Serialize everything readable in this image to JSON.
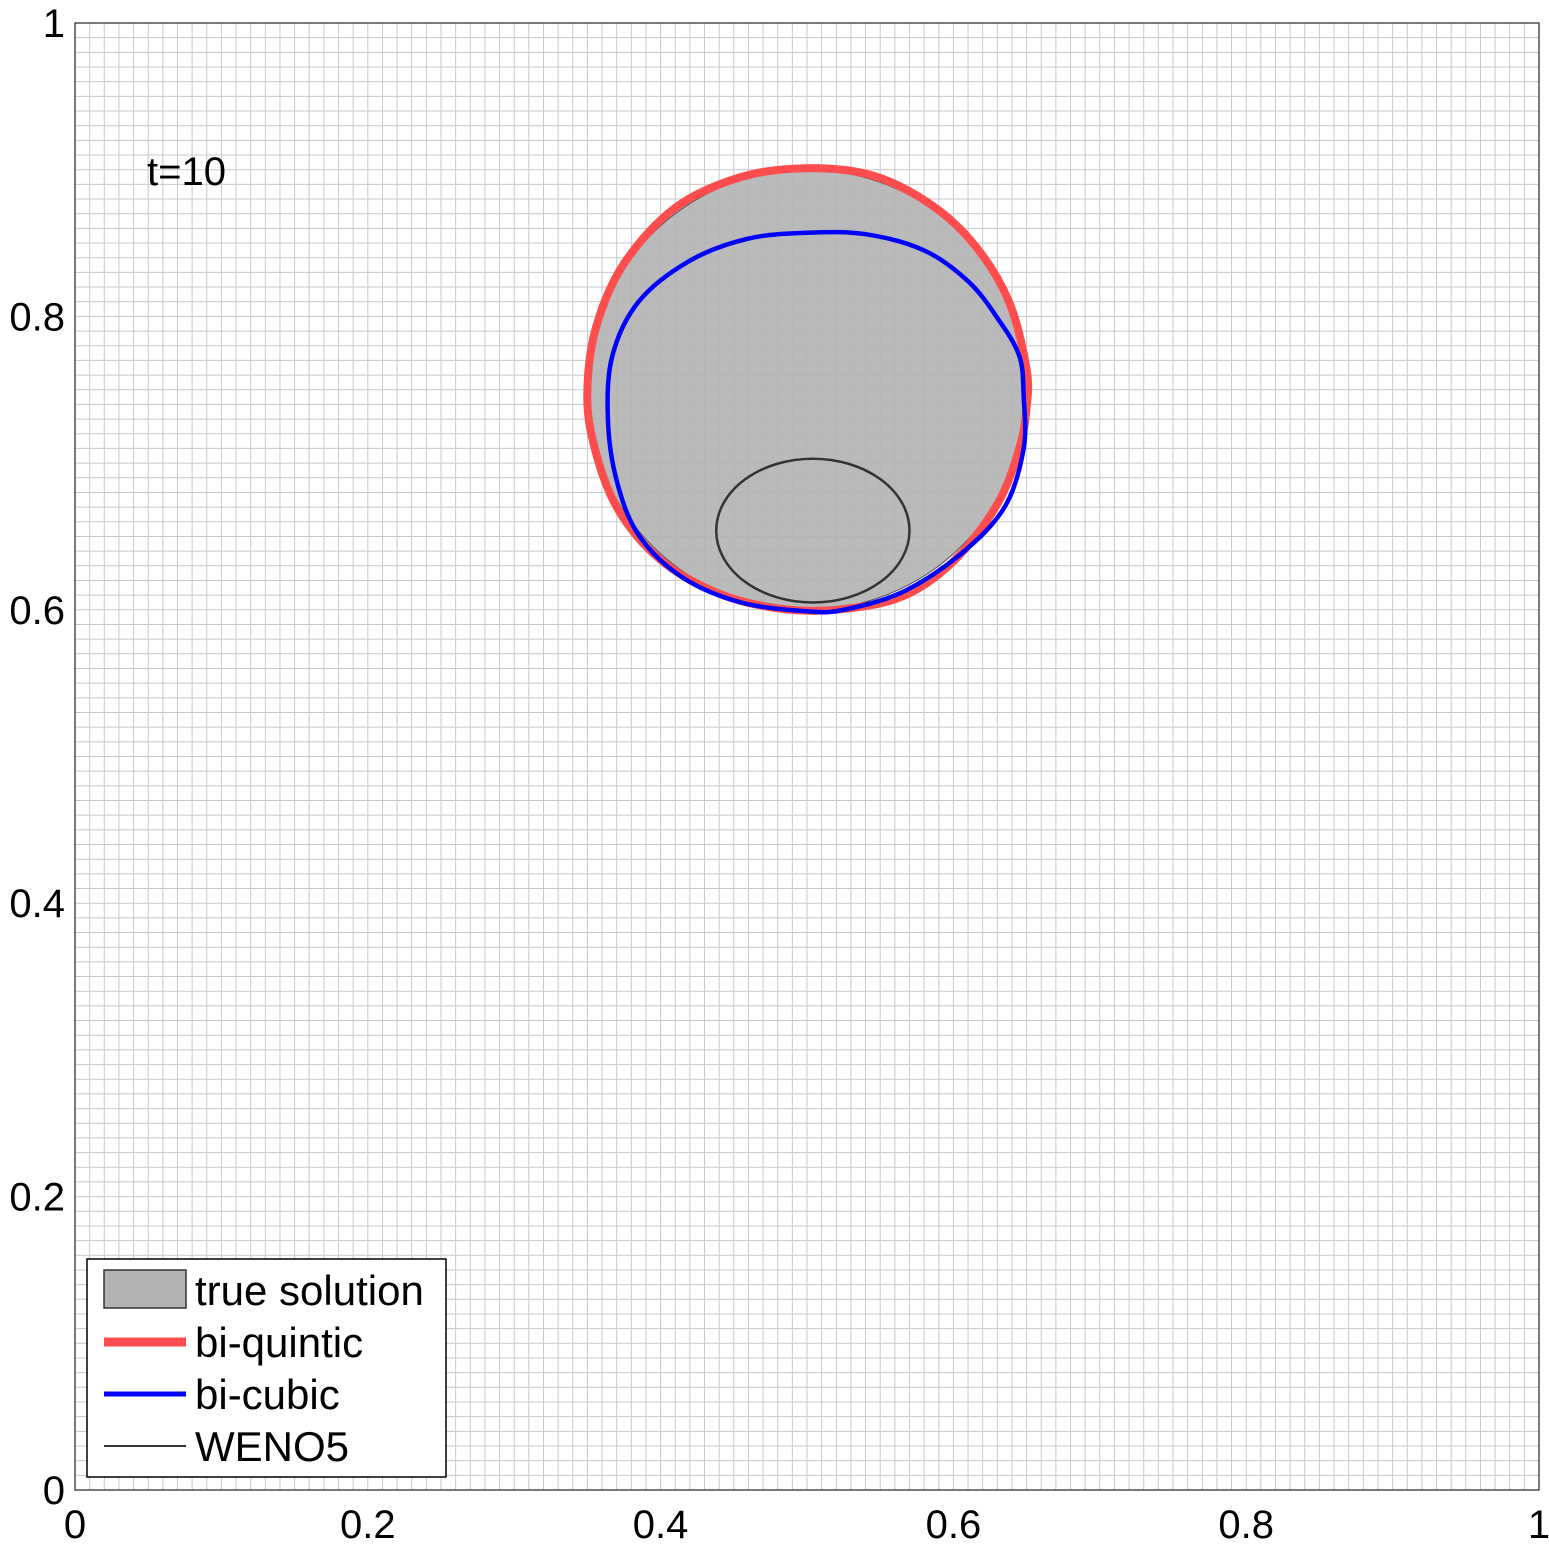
{
  "chart_data": {
    "type": "line",
    "title": "",
    "xlabel": "",
    "ylabel": "",
    "xlim": [
      0,
      1
    ],
    "ylim": [
      0,
      1
    ],
    "grid": true,
    "grid_spacing": 0.01,
    "x_ticks": [
      "0",
      "0.2",
      "0.4",
      "0.6",
      "0.8",
      "1"
    ],
    "y_ticks": [
      "0",
      "0.2",
      "0.4",
      "0.6",
      "0.8",
      "1"
    ],
    "annotation": "t=10",
    "legend_position": "bottom-left",
    "colors": {
      "true_solution_fill": "#b3b3b3",
      "bi_quintic": "#ff4d4d",
      "bi_cubic": "#0000ff",
      "weno5": "#333333",
      "grid": "#c8c8c8"
    },
    "series": [
      {
        "name": "true solution",
        "kind": "filled-disk",
        "center": [
          0.5,
          0.75
        ],
        "radius": 0.15
      },
      {
        "name": "bi-quintic",
        "kind": "closed-curve",
        "points": [
          [
            0.5,
            0.901
          ],
          [
            0.545,
            0.896
          ],
          [
            0.585,
            0.876
          ],
          [
            0.615,
            0.848
          ],
          [
            0.638,
            0.81
          ],
          [
            0.65,
            0.764
          ],
          [
            0.65,
            0.738
          ],
          [
            0.645,
            0.71
          ],
          [
            0.63,
            0.672
          ],
          [
            0.6,
            0.633
          ],
          [
            0.565,
            0.609
          ],
          [
            0.52,
            0.6
          ],
          [
            0.48,
            0.601
          ],
          [
            0.44,
            0.611
          ],
          [
            0.4,
            0.634
          ],
          [
            0.37,
            0.67
          ],
          [
            0.354,
            0.714
          ],
          [
            0.35,
            0.75
          ],
          [
            0.356,
            0.793
          ],
          [
            0.375,
            0.836
          ],
          [
            0.41,
            0.874
          ],
          [
            0.455,
            0.895
          ]
        ]
      },
      {
        "name": "bi-cubic",
        "kind": "closed-curve",
        "points": [
          [
            0.5,
            0.857
          ],
          [
            0.54,
            0.856
          ],
          [
            0.58,
            0.845
          ],
          [
            0.61,
            0.824
          ],
          [
            0.63,
            0.799
          ],
          [
            0.645,
            0.773
          ],
          [
            0.648,
            0.745
          ],
          [
            0.648,
            0.71
          ],
          [
            0.635,
            0.67
          ],
          [
            0.605,
            0.638
          ],
          [
            0.565,
            0.612
          ],
          [
            0.525,
            0.6
          ],
          [
            0.5,
            0.599
          ],
          [
            0.455,
            0.605
          ],
          [
            0.415,
            0.622
          ],
          [
            0.385,
            0.651
          ],
          [
            0.37,
            0.688
          ],
          [
            0.364,
            0.73
          ],
          [
            0.367,
            0.773
          ],
          [
            0.385,
            0.81
          ],
          [
            0.42,
            0.838
          ],
          [
            0.46,
            0.853
          ]
        ]
      },
      {
        "name": "WENO5",
        "kind": "ellipse",
        "center": [
          0.504,
          0.654
        ],
        "radii": [
          0.066,
          0.049
        ]
      }
    ]
  }
}
